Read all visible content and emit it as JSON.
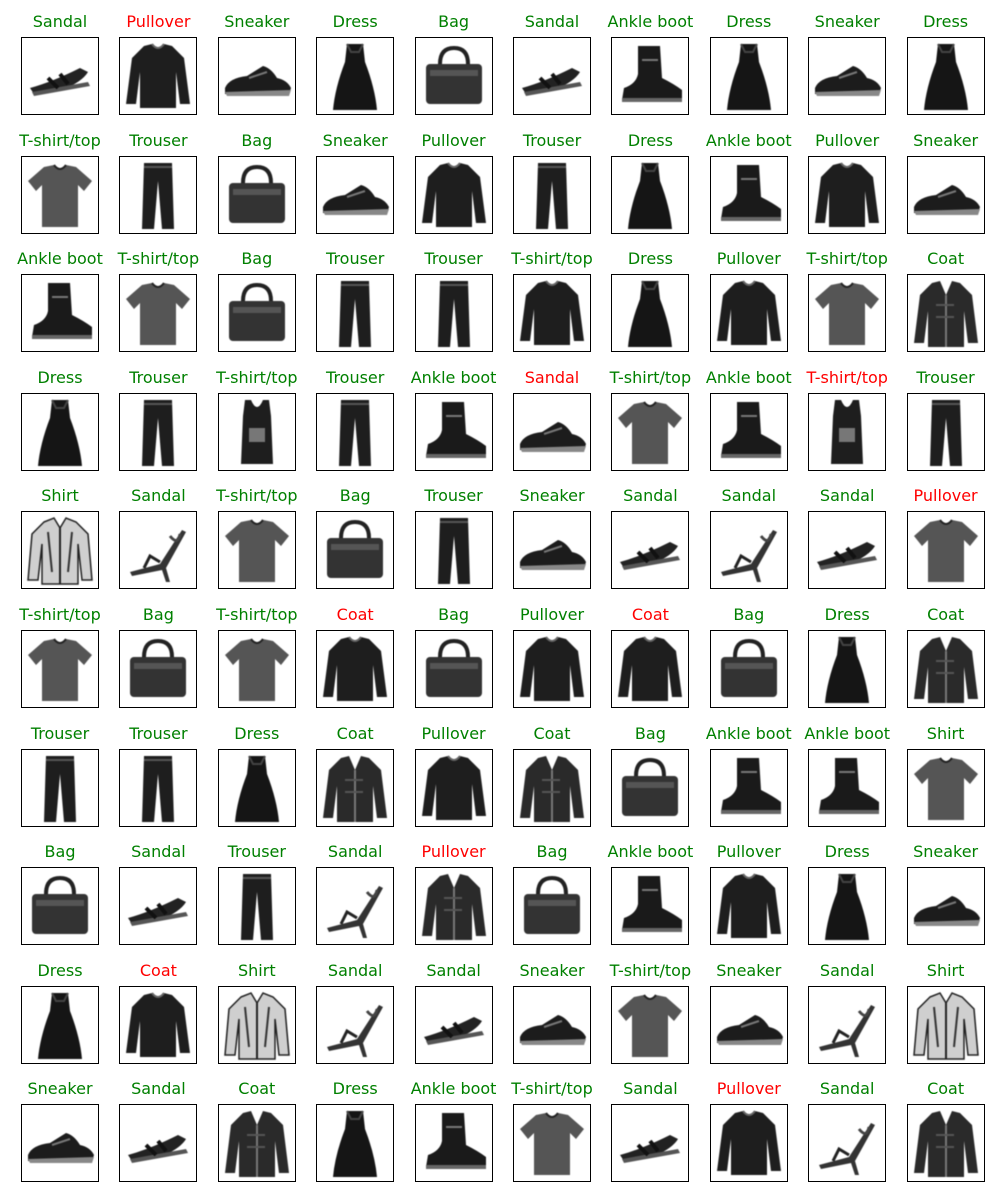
{
  "colors": {
    "correct": "#008000",
    "incorrect": "#ff0000"
  },
  "items": [
    {
      "label": "Sandal",
      "correct": true,
      "icon": "sandal-icon"
    },
    {
      "label": "Pullover",
      "correct": false,
      "icon": "pullover-icon"
    },
    {
      "label": "Sneaker",
      "correct": true,
      "icon": "sneaker-icon"
    },
    {
      "label": "Dress",
      "correct": true,
      "icon": "dress-icon"
    },
    {
      "label": "Bag",
      "correct": true,
      "icon": "bag-icon"
    },
    {
      "label": "Sandal",
      "correct": true,
      "icon": "sandal-icon"
    },
    {
      "label": "Ankle boot",
      "correct": true,
      "icon": "ankle-boot-icon"
    },
    {
      "label": "Dress",
      "correct": true,
      "icon": "dress-icon"
    },
    {
      "label": "Sneaker",
      "correct": true,
      "icon": "sneaker-icon"
    },
    {
      "label": "Dress",
      "correct": true,
      "icon": "dress-icon"
    },
    {
      "label": "T-shirt/top",
      "correct": true,
      "icon": "tshirt-icon"
    },
    {
      "label": "Trouser",
      "correct": true,
      "icon": "trouser-icon"
    },
    {
      "label": "Bag",
      "correct": true,
      "icon": "bag-icon"
    },
    {
      "label": "Sneaker",
      "correct": true,
      "icon": "sneaker-icon"
    },
    {
      "label": "Pullover",
      "correct": true,
      "icon": "pullover-icon"
    },
    {
      "label": "Trouser",
      "correct": true,
      "icon": "trouser-icon"
    },
    {
      "label": "Dress",
      "correct": true,
      "icon": "dress-icon"
    },
    {
      "label": "Ankle boot",
      "correct": true,
      "icon": "ankle-boot-icon"
    },
    {
      "label": "Pullover",
      "correct": true,
      "icon": "pullover-icon"
    },
    {
      "label": "Sneaker",
      "correct": true,
      "icon": "sneaker-icon"
    },
    {
      "label": "Ankle boot",
      "correct": true,
      "icon": "ankle-boot-icon"
    },
    {
      "label": "T-shirt/top",
      "correct": true,
      "icon": "tshirt-icon"
    },
    {
      "label": "Bag",
      "correct": true,
      "icon": "bag-icon"
    },
    {
      "label": "Trouser",
      "correct": true,
      "icon": "trouser-icon"
    },
    {
      "label": "Trouser",
      "correct": true,
      "icon": "trouser-icon"
    },
    {
      "label": "T-shirt/top",
      "correct": true,
      "icon": "pullover-icon"
    },
    {
      "label": "Dress",
      "correct": true,
      "icon": "dress-icon"
    },
    {
      "label": "Pullover",
      "correct": true,
      "icon": "pullover-icon"
    },
    {
      "label": "T-shirt/top",
      "correct": true,
      "icon": "tshirt-icon"
    },
    {
      "label": "Coat",
      "correct": true,
      "icon": "coat-icon"
    },
    {
      "label": "Dress",
      "correct": true,
      "icon": "dress-icon"
    },
    {
      "label": "Trouser",
      "correct": true,
      "icon": "trouser-icon"
    },
    {
      "label": "T-shirt/top",
      "correct": true,
      "icon": "tank-top-icon"
    },
    {
      "label": "Trouser",
      "correct": true,
      "icon": "trouser-icon"
    },
    {
      "label": "Ankle boot",
      "correct": true,
      "icon": "ankle-boot-icon"
    },
    {
      "label": "Sandal",
      "correct": false,
      "icon": "sneaker-icon"
    },
    {
      "label": "T-shirt/top",
      "correct": true,
      "icon": "tshirt-icon"
    },
    {
      "label": "Ankle boot",
      "correct": true,
      "icon": "ankle-boot-icon"
    },
    {
      "label": "T-shirt/top",
      "correct": false,
      "icon": "tank-top-icon"
    },
    {
      "label": "Trouser",
      "correct": true,
      "icon": "trouser-icon"
    },
    {
      "label": "Shirt",
      "correct": true,
      "icon": "shirt-icon"
    },
    {
      "label": "Sandal",
      "correct": true,
      "icon": "heel-sandal-icon"
    },
    {
      "label": "T-shirt/top",
      "correct": true,
      "icon": "tshirt-icon"
    },
    {
      "label": "Bag",
      "correct": true,
      "icon": "bag-icon"
    },
    {
      "label": "Trouser",
      "correct": true,
      "icon": "trouser-icon"
    },
    {
      "label": "Sneaker",
      "correct": true,
      "icon": "sneaker-icon"
    },
    {
      "label": "Sandal",
      "correct": true,
      "icon": "sandal-icon"
    },
    {
      "label": "Sandal",
      "correct": true,
      "icon": "heel-sandal-icon"
    },
    {
      "label": "Sandal",
      "correct": true,
      "icon": "sandal-icon"
    },
    {
      "label": "Pullover",
      "correct": false,
      "icon": "tshirt-icon"
    },
    {
      "label": "T-shirt/top",
      "correct": true,
      "icon": "tshirt-icon"
    },
    {
      "label": "Bag",
      "correct": true,
      "icon": "bag-icon"
    },
    {
      "label": "T-shirt/top",
      "correct": true,
      "icon": "tshirt-icon"
    },
    {
      "label": "Coat",
      "correct": false,
      "icon": "pullover-icon"
    },
    {
      "label": "Bag",
      "correct": true,
      "icon": "bag-icon"
    },
    {
      "label": "Pullover",
      "correct": true,
      "icon": "pullover-icon"
    },
    {
      "label": "Coat",
      "correct": false,
      "icon": "pullover-icon"
    },
    {
      "label": "Bag",
      "correct": true,
      "icon": "bag-icon"
    },
    {
      "label": "Dress",
      "correct": true,
      "icon": "dress-icon"
    },
    {
      "label": "Coat",
      "correct": true,
      "icon": "coat-icon"
    },
    {
      "label": "Trouser",
      "correct": true,
      "icon": "trouser-icon"
    },
    {
      "label": "Trouser",
      "correct": true,
      "icon": "trouser-icon"
    },
    {
      "label": "Dress",
      "correct": true,
      "icon": "dress-icon"
    },
    {
      "label": "Coat",
      "correct": true,
      "icon": "coat-icon"
    },
    {
      "label": "Pullover",
      "correct": true,
      "icon": "pullover-icon"
    },
    {
      "label": "Coat",
      "correct": true,
      "icon": "coat-icon"
    },
    {
      "label": "Bag",
      "correct": true,
      "icon": "bag-icon"
    },
    {
      "label": "Ankle boot",
      "correct": true,
      "icon": "ankle-boot-icon"
    },
    {
      "label": "Ankle boot",
      "correct": true,
      "icon": "ankle-boot-icon"
    },
    {
      "label": "Shirt",
      "correct": true,
      "icon": "tshirt-icon"
    },
    {
      "label": "Bag",
      "correct": true,
      "icon": "bag-icon"
    },
    {
      "label": "Sandal",
      "correct": true,
      "icon": "sandal-icon"
    },
    {
      "label": "Trouser",
      "correct": true,
      "icon": "trouser-icon"
    },
    {
      "label": "Sandal",
      "correct": true,
      "icon": "heel-sandal-icon"
    },
    {
      "label": "Pullover",
      "correct": false,
      "icon": "coat-icon"
    },
    {
      "label": "Bag",
      "correct": true,
      "icon": "bag-icon"
    },
    {
      "label": "Ankle boot",
      "correct": true,
      "icon": "ankle-boot-icon"
    },
    {
      "label": "Pullover",
      "correct": true,
      "icon": "pullover-icon"
    },
    {
      "label": "Dress",
      "correct": true,
      "icon": "dress-icon"
    },
    {
      "label": "Sneaker",
      "correct": true,
      "icon": "sneaker-icon"
    },
    {
      "label": "Dress",
      "correct": true,
      "icon": "dress-icon"
    },
    {
      "label": "Coat",
      "correct": false,
      "icon": "pullover-icon"
    },
    {
      "label": "Shirt",
      "correct": true,
      "icon": "shirt-icon"
    },
    {
      "label": "Sandal",
      "correct": true,
      "icon": "heel-sandal-icon"
    },
    {
      "label": "Sandal",
      "correct": true,
      "icon": "sandal-icon"
    },
    {
      "label": "Sneaker",
      "correct": true,
      "icon": "sneaker-icon"
    },
    {
      "label": "T-shirt/top",
      "correct": true,
      "icon": "tshirt-icon"
    },
    {
      "label": "Sneaker",
      "correct": true,
      "icon": "sneaker-icon"
    },
    {
      "label": "Sandal",
      "correct": true,
      "icon": "heel-sandal-icon"
    },
    {
      "label": "Shirt",
      "correct": true,
      "icon": "shirt-icon"
    },
    {
      "label": "Sneaker",
      "correct": true,
      "icon": "sneaker-icon"
    },
    {
      "label": "Sandal",
      "correct": true,
      "icon": "sandal-icon"
    },
    {
      "label": "Coat",
      "correct": true,
      "icon": "coat-icon"
    },
    {
      "label": "Dress",
      "correct": true,
      "icon": "dress-icon"
    },
    {
      "label": "Ankle boot",
      "correct": true,
      "icon": "ankle-boot-icon"
    },
    {
      "label": "T-shirt/top",
      "correct": true,
      "icon": "tshirt-icon"
    },
    {
      "label": "Sandal",
      "correct": true,
      "icon": "sandal-icon"
    },
    {
      "label": "Pullover",
      "correct": false,
      "icon": "pullover-icon"
    },
    {
      "label": "Sandal",
      "correct": true,
      "icon": "heel-sandal-icon"
    },
    {
      "label": "Coat",
      "correct": true,
      "icon": "coat-icon"
    }
  ]
}
